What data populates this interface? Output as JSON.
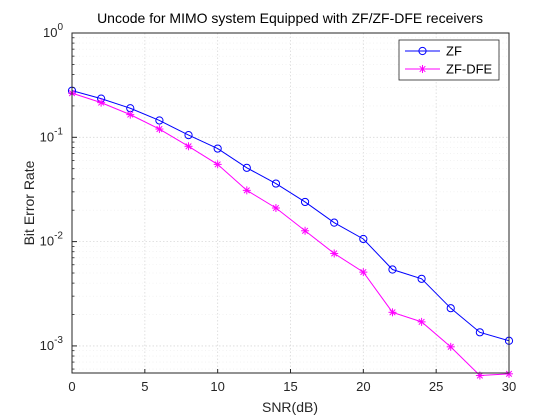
{
  "chart_data": {
    "type": "line",
    "title": "Uncode for MIMO system Equipped with ZF/ZF-DFE receivers",
    "xlabel": "SNR(dB)",
    "ylabel": "Bit Error Rate",
    "x": [
      0,
      2,
      4,
      6,
      8,
      10,
      12,
      14,
      16,
      18,
      20,
      22,
      24,
      26,
      28,
      30
    ],
    "xlim": [
      0,
      30
    ],
    "ylim": [
      0.00055,
      1
    ],
    "yscale": "log",
    "grid": true,
    "legend_position": "top-right",
    "x_ticks": [
      "0",
      "5",
      "10",
      "15",
      "20",
      "25",
      "30"
    ],
    "y_ticks": [
      {
        "base": "10",
        "exp": "0"
      },
      {
        "base": "10",
        "exp": "-1"
      },
      {
        "base": "10",
        "exp": "-2"
      },
      {
        "base": "10",
        "exp": "-3"
      }
    ],
    "series": [
      {
        "name": "ZF",
        "color": "#0000ff",
        "marker": "circle",
        "values": [
          0.28,
          0.235,
          0.19,
          0.145,
          0.105,
          0.078,
          0.051,
          0.036,
          0.024,
          0.0152,
          0.0106,
          0.0054,
          0.0044,
          0.0023,
          0.00135,
          0.00112
        ]
      },
      {
        "name": "ZF-DFE",
        "color": "#ff00ff",
        "marker": "asterisk",
        "values": [
          0.265,
          0.215,
          0.165,
          0.12,
          0.082,
          0.055,
          0.031,
          0.021,
          0.0127,
          0.0077,
          0.0051,
          0.0021,
          0.0017,
          0.00098,
          0.00052,
          0.00054
        ]
      }
    ]
  }
}
